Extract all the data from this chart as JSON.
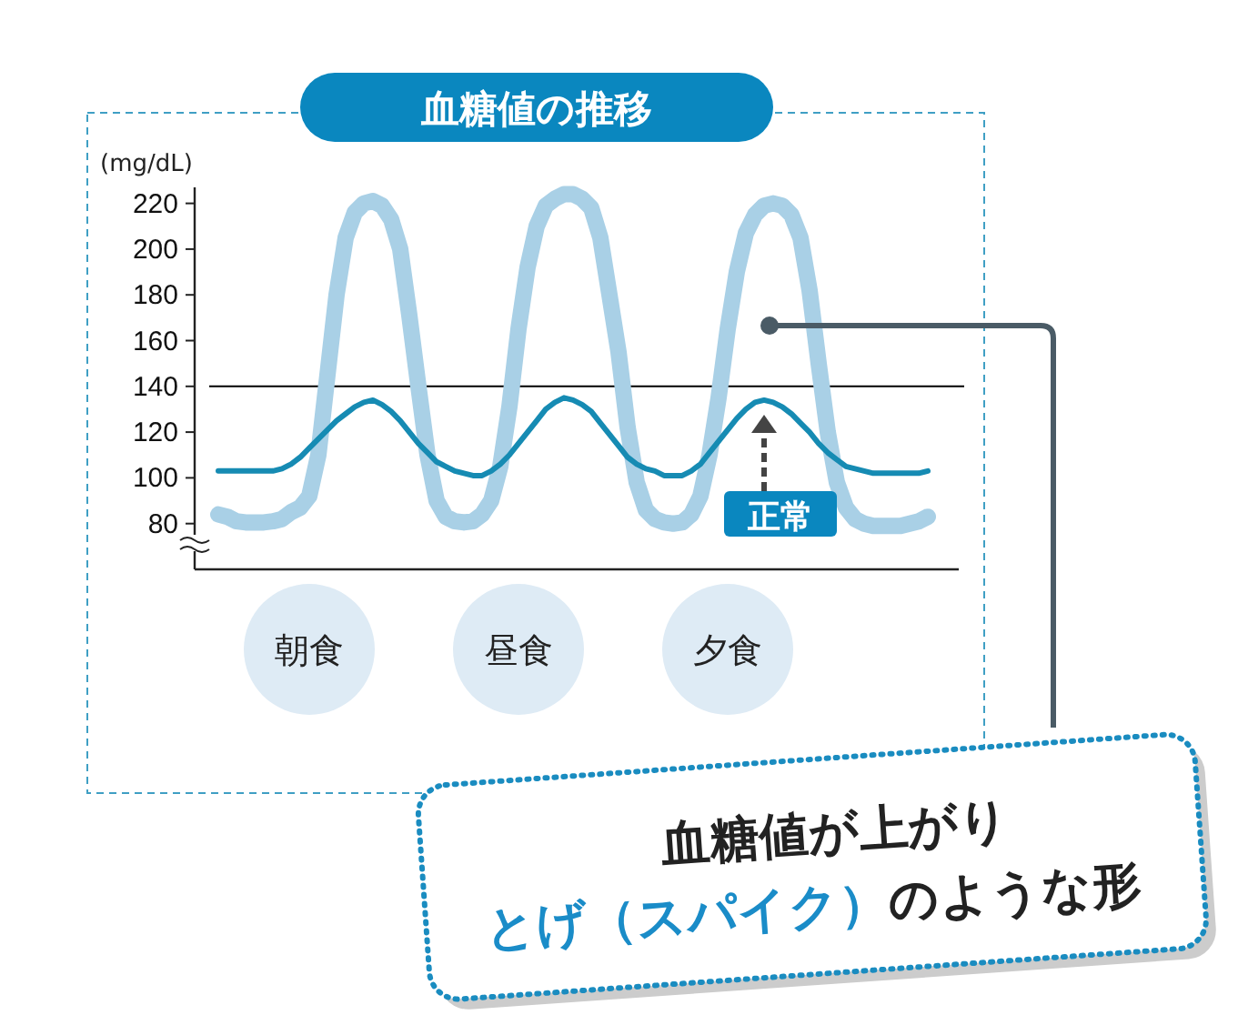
{
  "chart_data": {
    "type": "line",
    "title": "血糖値の推移",
    "ylabel": "(mg/dL)",
    "categories": [
      null,
      null,
      null,
      null,
      null,
      null,
      null,
      null,
      null,
      null,
      "朝食",
      null,
      null,
      null,
      null,
      null,
      null,
      null,
      null,
      null,
      null,
      null,
      null,
      null,
      null,
      null,
      null,
      null,
      null,
      null,
      null,
      null,
      null,
      "昼食",
      null,
      null,
      null,
      null,
      null,
      null,
      null,
      null,
      null,
      null,
      null,
      null,
      null,
      null,
      null,
      null,
      null,
      null,
      null,
      null,
      null,
      null,
      "夕食",
      null,
      null,
      null,
      null,
      null,
      null,
      null,
      null,
      null,
      null,
      null,
      null,
      null,
      null,
      null,
      null,
      null,
      null,
      null,
      null,
      null,
      null
    ],
    "series": [
      {
        "color": "#a9d0e6",
        "values": [
          84,
          83,
          81,
          80.5,
          80.5,
          80.5,
          81,
          82,
          85,
          87,
          92,
          110,
          145,
          180,
          205,
          216,
          220,
          221,
          219,
          213,
          200,
          171,
          140,
          110,
          90,
          83,
          81,
          80.5,
          81,
          84,
          90,
          105,
          131,
          165,
          192,
          210,
          219,
          222,
          224,
          224,
          222,
          218,
          205,
          180,
          155,
          122,
          98,
          86,
          82,
          80.5,
          80,
          80.5,
          84,
          92,
          110,
          135,
          165,
          190,
          207,
          215,
          219,
          220,
          219,
          215,
          205,
          182,
          150,
          120,
          98,
          87,
          82,
          80,
          79,
          79,
          79,
          79,
          80,
          81,
          83
        ]
      },
      {
        "color": "#168bb3",
        "values": [
          103,
          103,
          103,
          103,
          103,
          103,
          103,
          104,
          106,
          109,
          113,
          117,
          121,
          125,
          128,
          131,
          133,
          134,
          132,
          129,
          125,
          120,
          115,
          111,
          107,
          105,
          103,
          102,
          101,
          101,
          103,
          106,
          110,
          115,
          120,
          125,
          130,
          133,
          135,
          134,
          132,
          129,
          124,
          119,
          114,
          109,
          106,
          104,
          103,
          101,
          101,
          101,
          103,
          106,
          111,
          116,
          121,
          126,
          130,
          133,
          134,
          133,
          131,
          128,
          124,
          120,
          115,
          111,
          108,
          105,
          104,
          103,
          102,
          102,
          102,
          102,
          102,
          102,
          103
        ]
      }
    ],
    "ylim": [
      60,
      227
    ],
    "yticks": [
      80,
      100,
      120,
      140,
      160,
      180,
      200,
      220
    ],
    "ref_lines": [
      {
        "axis": "y",
        "value": 140,
        "color": "#000000"
      }
    ],
    "annotations": [
      "正常",
      "血糖値が上がり",
      "とげ（スパイク）",
      "のような形"
    ]
  }
}
